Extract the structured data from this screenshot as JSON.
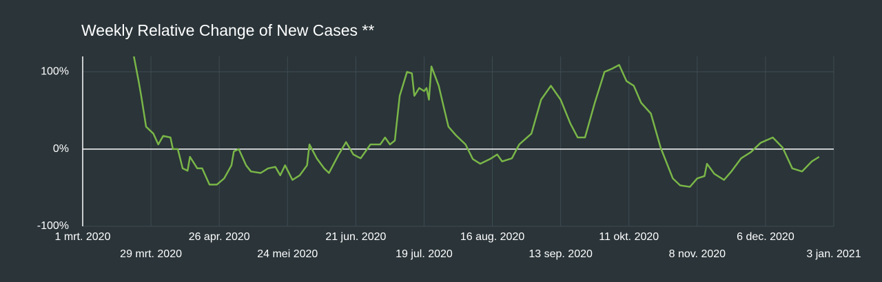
{
  "chart_data": {
    "type": "line",
    "title": "Weekly Relative Change of New Cases **",
    "x": [
      "2020-03-22",
      "2020-03-24",
      "2020-03-25",
      "2020-03-27",
      "2020-03-30",
      "2020-04-01",
      "2020-04-03",
      "2020-04-06",
      "2020-04-07",
      "2020-04-09",
      "2020-04-11",
      "2020-04-13",
      "2020-04-14",
      "2020-04-17",
      "2020-04-19",
      "2020-04-22",
      "2020-04-25",
      "2020-04-28",
      "2020-05-01",
      "2020-05-02",
      "2020-05-04",
      "2020-05-07",
      "2020-05-09",
      "2020-05-13",
      "2020-05-16",
      "2020-05-19",
      "2020-05-21",
      "2020-05-23",
      "2020-05-26",
      "2020-05-29",
      "2020-06-01",
      "2020-06-02",
      "2020-06-05",
      "2020-06-08",
      "2020-06-10",
      "2020-06-14",
      "2020-06-17",
      "2020-06-20",
      "2020-06-23",
      "2020-06-27",
      "2020-07-01",
      "2020-07-03",
      "2020-07-05",
      "2020-07-07",
      "2020-07-09",
      "2020-07-12",
      "2020-07-14",
      "2020-07-15",
      "2020-07-17",
      "2020-07-19",
      "2020-07-20",
      "2020-07-21",
      "2020-07-22",
      "2020-07-25",
      "2020-07-27",
      "2020-07-29",
      "2020-08-01",
      "2020-08-05",
      "2020-08-08",
      "2020-08-11",
      "2020-08-15",
      "2020-08-18",
      "2020-08-20",
      "2020-08-24",
      "2020-08-27",
      "2020-09-01",
      "2020-09-05",
      "2020-09-09",
      "2020-09-13",
      "2020-09-17",
      "2020-09-20",
      "2020-09-23",
      "2020-09-27",
      "2020-10-01",
      "2020-10-04",
      "2020-10-07",
      "2020-10-10",
      "2020-10-13",
      "2020-10-16",
      "2020-10-20",
      "2020-10-24",
      "2020-10-29",
      "2020-11-01",
      "2020-11-05",
      "2020-11-08",
      "2020-11-11",
      "2020-11-12",
      "2020-11-15",
      "2020-11-19",
      "2020-11-22",
      "2020-11-26",
      "2020-11-30",
      "2020-12-04",
      "2020-12-09",
      "2020-12-13",
      "2020-12-17",
      "2020-12-21",
      "2020-12-25",
      "2020-12-28"
    ],
    "series": [
      {
        "color": "#7ab648",
        "values": [
          120,
          87,
          69,
          29,
          20,
          6,
          17,
          15,
          0,
          0,
          -25,
          -28,
          -10,
          -25,
          -25,
          -46,
          -46,
          -38,
          -21,
          -3,
          0,
          -21,
          -29,
          -31,
          -25,
          -23,
          -34,
          -21,
          -40,
          -34,
          -21,
          6,
          -12,
          -25,
          -31,
          -7,
          9,
          -7,
          -12,
          6,
          6,
          15,
          6,
          11,
          69,
          100,
          98,
          69,
          79,
          75,
          79,
          64,
          107,
          82,
          55,
          29,
          18,
          6,
          -13,
          -19,
          -13,
          -7,
          -16,
          -12,
          6,
          20,
          64,
          82,
          64,
          33,
          15,
          15,
          60,
          100,
          104,
          109,
          88,
          82,
          60,
          46,
          2,
          -38,
          -47,
          -49,
          -38,
          -35,
          -19,
          -32,
          -40,
          -29,
          -12,
          -4,
          8,
          15,
          2,
          -25,
          -29,
          -16,
          -10
        ]
      }
    ],
    "xlim": [
      "2020-03-01",
      "2021-01-03"
    ],
    "xticks": [
      {
        "value": "2020-03-01",
        "label": "1 mrt. 2020"
      },
      {
        "value": "2020-03-29",
        "label": "29 mrt. 2020"
      },
      {
        "value": "2020-04-26",
        "label": "26 apr. 2020"
      },
      {
        "value": "2020-05-24",
        "label": "24 mei 2020"
      },
      {
        "value": "2020-06-21",
        "label": "21 jun. 2020"
      },
      {
        "value": "2020-07-19",
        "label": "19 jul. 2020"
      },
      {
        "value": "2020-08-16",
        "label": "16 aug. 2020"
      },
      {
        "value": "2020-09-13",
        "label": "13 sep. 2020"
      },
      {
        "value": "2020-10-11",
        "label": "11 okt. 2020"
      },
      {
        "value": "2020-11-08",
        "label": "8 nov. 2020"
      },
      {
        "value": "2020-12-06",
        "label": "6 dec. 2020"
      },
      {
        "value": "2021-01-03",
        "label": "3 jan. 2021"
      }
    ],
    "ylim": [
      -100,
      120
    ],
    "yticks": [
      {
        "value": -100,
        "label": "-100%"
      },
      {
        "value": 0,
        "label": "0%"
      },
      {
        "value": 100,
        "label": "100%"
      }
    ],
    "grid": true
  }
}
